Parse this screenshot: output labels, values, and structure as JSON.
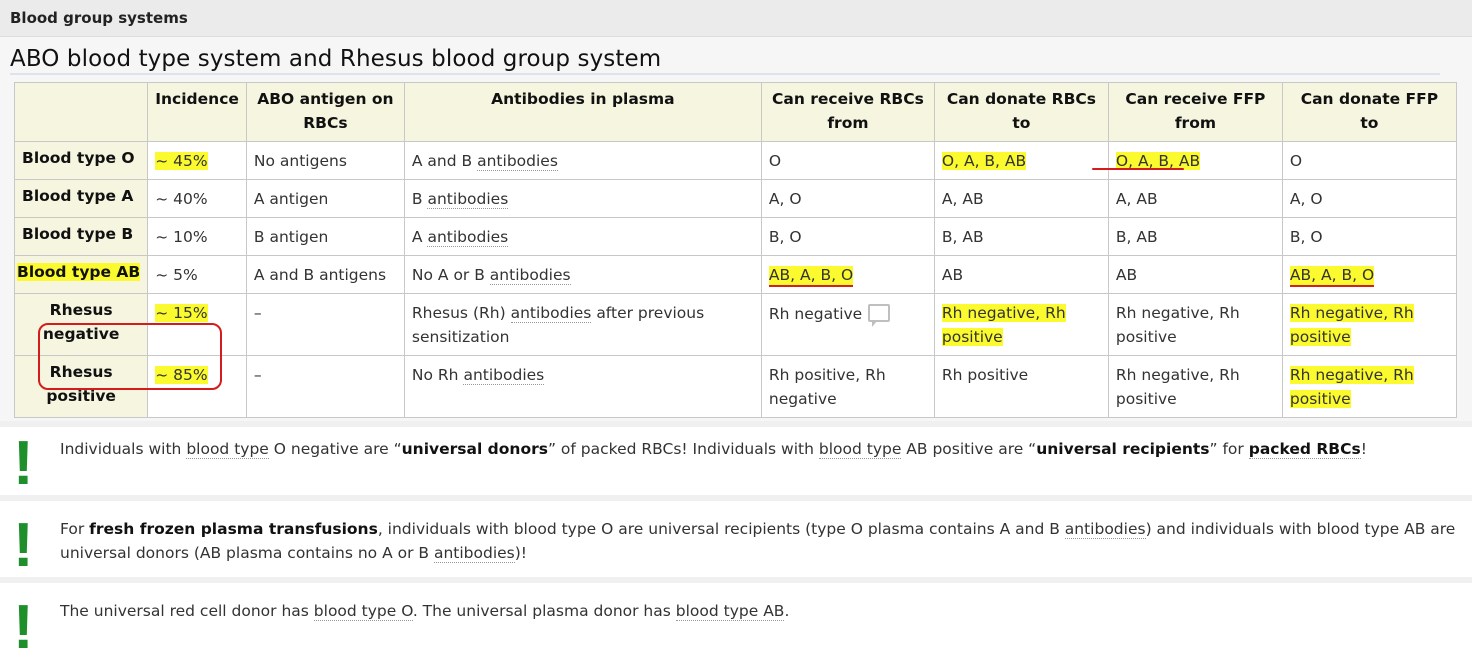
{
  "header": {
    "title": "Blood group systems"
  },
  "section": {
    "title": "ABO blood type system and Rhesus blood group system"
  },
  "table": {
    "columns": [
      "",
      "Incidence",
      "ABO antigen on RBCs",
      "Antibodies in plasma",
      "Can receive RBCs from",
      "Can donate RBCs to",
      "Can receive FFP from",
      "Can donate FFP to"
    ],
    "rows": [
      {
        "label": "Blood type O",
        "incidence": "~ 45%",
        "antigen": "No antigens",
        "antibodies_prefix": "A and B",
        "antibodies_link": "antibodies",
        "antibodies_suffix": "",
        "recv_rbc": "O",
        "donate_rbc": "O, A, B, AB",
        "recv_ffp": "O, A, B, AB",
        "donate_ffp": "O"
      },
      {
        "label": "Blood type A",
        "incidence": "~ 40%",
        "antigen": "A antigen",
        "antibodies_prefix": "B",
        "antibodies_link": "antibodies",
        "antibodies_suffix": "",
        "recv_rbc": "A, O",
        "donate_rbc": "A, AB",
        "recv_ffp": "A, AB",
        "donate_ffp": "A, O"
      },
      {
        "label": "Blood type B",
        "incidence": "~ 10%",
        "antigen": "B antigen",
        "antibodies_prefix": "A",
        "antibodies_link": "antibodies",
        "antibodies_suffix": "",
        "recv_rbc": "B, O",
        "donate_rbc": "B, AB",
        "recv_ffp": "B, AB",
        "donate_ffp": "B, O"
      },
      {
        "label": "Blood type AB",
        "incidence": "~ 5%",
        "antigen": "A and B antigens",
        "antibodies_prefix": "No A or B",
        "antibodies_link": "antibodies",
        "antibodies_suffix": "",
        "recv_rbc": "AB, A, B, O",
        "donate_rbc": "AB",
        "recv_ffp": "AB",
        "donate_ffp": "AB, A, B, O"
      },
      {
        "label": "Rhesus negative",
        "incidence": "~ 15%",
        "antigen": "–",
        "antibodies_prefix": "Rhesus (Rh)",
        "antibodies_link": "antibodies",
        "antibodies_suffix": "after previous sensitization",
        "recv_rbc": "Rh negative",
        "donate_rbc": "Rh negative, Rh positive",
        "recv_ffp": "Rh negative, Rh positive",
        "donate_ffp": "Rh negative, Rh positive"
      },
      {
        "label": "Rhesus positive",
        "incidence": "~ 85%",
        "antigen": "–",
        "antibodies_prefix": "No Rh",
        "antibodies_link": "antibodies",
        "antibodies_suffix": "",
        "recv_rbc": "Rh positive, Rh negative",
        "donate_rbc": "Rh positive",
        "recv_ffp": "Rh negative, Rh positive",
        "donate_ffp": "Rh negative, Rh positive"
      }
    ]
  },
  "notes": [
    {
      "t1": "Individuals with ",
      "l1": "blood type",
      "t2": " O negative are “",
      "b1": "universal donors",
      "t3": "” of packed RBCs! Individuals with ",
      "l2": "blood type",
      "t4": " AB positive are “",
      "b2": "universal recipients",
      "t5": "” for ",
      "b3": "packed RBCs",
      "t6": "!"
    },
    {
      "t1": "For ",
      "b1": "fresh frozen plasma transfusions",
      "t2": ", individuals with blood type O are universal recipients (type O plasma contains A and B ",
      "l1": "antibodies",
      "t3": ") and individuals with blood type AB are universal donors (AB plasma contains no A or B ",
      "l2": "antibodies",
      "t4": ")!"
    },
    {
      "t1": "The universal red cell donor has ",
      "l1": "blood type O",
      "t2": ". The universal plasma donor has ",
      "l2": "blood type AB",
      "t3": "."
    }
  ],
  "colors": {
    "highlight": "#fafa2e",
    "annotation_red": "#d41c1c",
    "note_icon_green": "#1f8f2c",
    "header_bg": "#f6f5df"
  },
  "icons": {
    "note": "exclamation-icon",
    "comment": "comment-icon"
  }
}
